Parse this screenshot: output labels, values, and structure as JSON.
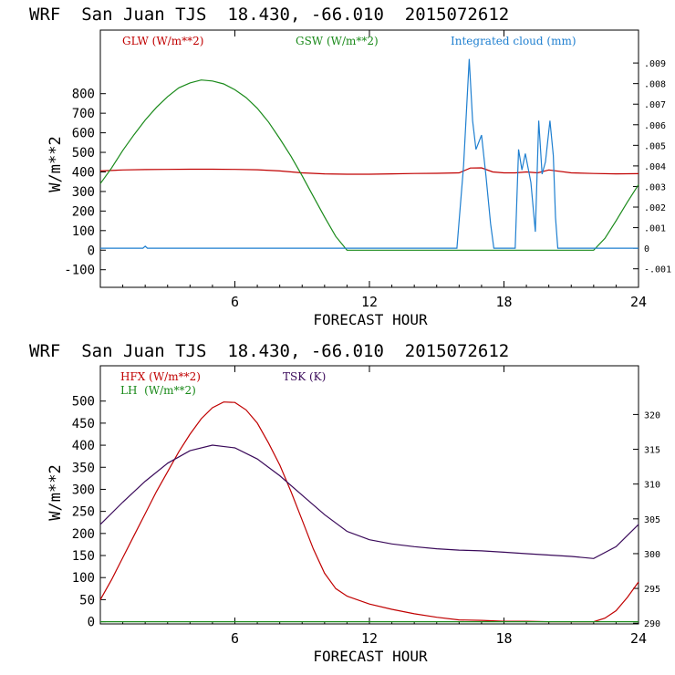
{
  "chart_data": [
    {
      "type": "line",
      "title": "WRF  San Juan TJS  18.430, -66.010  2015072612",
      "xlabel": "FORECAST HOUR",
      "ylabel": "W/m**2",
      "xlim": [
        0,
        24
      ],
      "ylim": [
        -190,
        1125
      ],
      "xticks": [
        "6",
        "12",
        "18",
        "24"
      ],
      "yticks": [
        "-100",
        "0",
        "100",
        "200",
        "300",
        "400",
        "500",
        "600",
        "700",
        "800"
      ],
      "y2_ticks": [
        "-.001",
        "0",
        ".001",
        ".002",
        ".003",
        ".004",
        ".005",
        ".006",
        ".007",
        ".008",
        ".009"
      ],
      "y2lim": [
        -0.0019,
        0.0106
      ],
      "legend": [
        "GLW (W/m**2)",
        "GSW (W/m**2)",
        "Integrated cloud (mm)"
      ],
      "colors": {
        "glw": "#c00000",
        "gsw": "#1a8a1a",
        "cloud": "#1e7fd0"
      },
      "series": [
        {
          "name": "GLW (W/m**2)",
          "axis": "left",
          "x": [
            0,
            1,
            2,
            3,
            4,
            5,
            6,
            7,
            8,
            9,
            10,
            11,
            12,
            13,
            14,
            15,
            16,
            16.5,
            17,
            17.5,
            18,
            18.5,
            19,
            19.5,
            20,
            21,
            22,
            23,
            24
          ],
          "values": [
            405,
            410,
            412,
            413,
            414,
            414,
            413,
            411,
            405,
            395,
            390,
            388,
            388,
            390,
            392,
            393,
            395,
            420,
            421,
            400,
            395,
            395,
            400,
            395,
            410,
            395,
            392,
            390,
            391
          ]
        },
        {
          "name": "GSW (W/m**2)",
          "axis": "left",
          "x": [
            0,
            0.5,
            1,
            1.5,
            2,
            2.5,
            3,
            3.5,
            4,
            4.5,
            5,
            5.5,
            6,
            6.5,
            7,
            7.5,
            8,
            8.5,
            9,
            9.5,
            10,
            10.5,
            11,
            11.5,
            22,
            22.5,
            23,
            23.5,
            24
          ],
          "values": [
            340,
            420,
            510,
            590,
            665,
            730,
            785,
            830,
            855,
            870,
            865,
            850,
            820,
            780,
            725,
            655,
            570,
            480,
            380,
            275,
            170,
            70,
            0,
            0,
            0,
            60,
            150,
            245,
            335
          ]
        },
        {
          "name": "Integrated cloud (mm)",
          "axis": "right",
          "x": [
            0,
            1.9,
            2,
            2.1,
            15.9,
            16.2,
            16.45,
            16.6,
            16.75,
            17.0,
            17.2,
            17.4,
            17.55,
            18.5,
            18.65,
            18.8,
            18.95,
            19.2,
            19.4,
            19.55,
            19.7,
            19.85,
            20.05,
            20.2,
            20.3,
            20.4,
            24
          ],
          "values": [
            0,
            0,
            0.0001,
            0,
            0,
            0.004,
            0.0092,
            0.0062,
            0.0048,
            0.0055,
            0.0035,
            0.0012,
            0,
            0,
            0.0048,
            0.0038,
            0.0046,
            0.0032,
            0.0008,
            0.0062,
            0.0036,
            0.0042,
            0.0062,
            0.0045,
            0.0015,
            0,
            0
          ]
        }
      ]
    },
    {
      "type": "line",
      "title": "WRF  San Juan TJS  18.430, -66.010  2015072612",
      "xlabel": "FORECAST HOUR",
      "ylabel": "W/m**2",
      "xlim": [
        0,
        24
      ],
      "ylim": [
        -5,
        580
      ],
      "xticks": [
        "6",
        "12",
        "18",
        "24"
      ],
      "yticks": [
        "0",
        "50",
        "100",
        "150",
        "200",
        "250",
        "300",
        "350",
        "400",
        "450",
        "500"
      ],
      "y2_ticks": [
        "290",
        "295",
        "300",
        "305",
        "310",
        "315",
        "320"
      ],
      "y2lim": [
        289.9,
        327
      ],
      "legend": [
        "HFX (W/m**2)",
        "LH  (W/m**2)",
        "TSK (K)"
      ],
      "colors": {
        "hfx": "#c00000",
        "lh": "#1a8a1a",
        "tsk": "#3a0a5a"
      },
      "series": [
        {
          "name": "HFX (W/m**2)",
          "axis": "left",
          "x": [
            0,
            0.5,
            1,
            1.5,
            2,
            2.5,
            3,
            3.5,
            4,
            4.5,
            5,
            5.5,
            6,
            6.5,
            7,
            7.5,
            8,
            8.5,
            9,
            9.5,
            10,
            10.5,
            11,
            12,
            13,
            14,
            15,
            16,
            17,
            18,
            19,
            20,
            21,
            22,
            22.5,
            23,
            23.5,
            24
          ],
          "values": [
            50,
            95,
            145,
            195,
            245,
            295,
            340,
            385,
            425,
            460,
            485,
            498,
            497,
            480,
            450,
            405,
            355,
            295,
            230,
            165,
            110,
            75,
            58,
            40,
            28,
            18,
            10,
            4,
            3,
            1,
            1,
            0,
            0,
            0,
            8,
            25,
            55,
            90
          ]
        },
        {
          "name": "LH  (W/m**2)",
          "axis": "left",
          "x": [
            0,
            24
          ],
          "values": [
            0,
            0
          ]
        },
        {
          "name": "TSK (K)",
          "axis": "right",
          "x": [
            0,
            1,
            2,
            3,
            4,
            5,
            6,
            7,
            8,
            9,
            10,
            11,
            12,
            13,
            14,
            15,
            16,
            17,
            18,
            19,
            20,
            21,
            22,
            23,
            24
          ],
          "values": [
            304.2,
            307.4,
            310.4,
            313.0,
            314.8,
            315.6,
            315.2,
            313.6,
            311.2,
            308.4,
            305.6,
            303.2,
            302.0,
            301.4,
            301.0,
            300.7,
            300.5,
            300.4,
            300.2,
            300.0,
            299.8,
            299.6,
            299.3,
            301.0,
            304.2
          ]
        }
      ]
    }
  ]
}
